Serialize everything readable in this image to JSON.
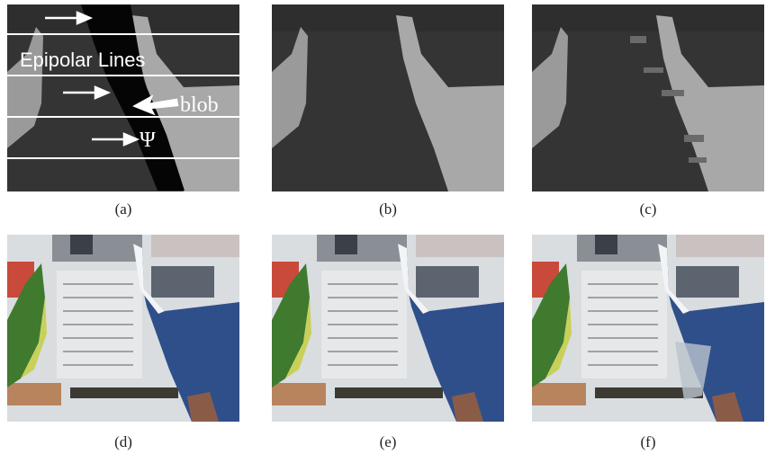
{
  "figure": {
    "labels": [
      "(a)",
      "(b)",
      "(c)",
      "(d)",
      "(e)",
      "(f)"
    ],
    "annotations": {
      "epipolar": "Epipolar Lines",
      "blob": "blob",
      "psi": "Ψ"
    }
  }
}
